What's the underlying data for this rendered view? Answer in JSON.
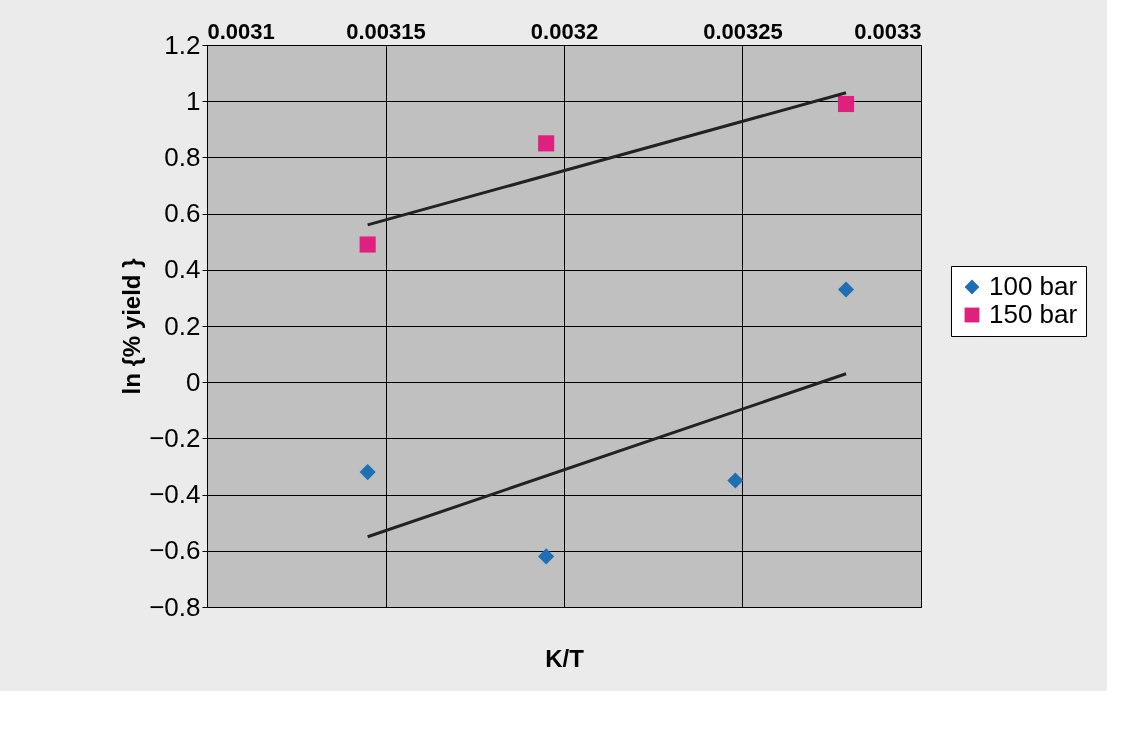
{
  "chart_data": {
    "type": "scatter",
    "xlabel": "K/T",
    "ylabel": "ln {% yield }",
    "xlim": [
      0.0031,
      0.0033
    ],
    "xticks": [
      0.0031,
      0.00315,
      0.0032,
      0.00325,
      0.0033
    ],
    "ylim": [
      -0.8,
      1.2
    ],
    "yticks": [
      -0.8,
      -0.6,
      -0.4,
      -0.2,
      0,
      0.2,
      0.4,
      0.6,
      0.8,
      1,
      1.2
    ],
    "grid": true,
    "legend": "right",
    "series": [
      {
        "name": "100 bar",
        "marker": "diamond",
        "color": "#1f6fb4",
        "x": [
          0.003145,
          0.003195,
          0.003248,
          0.003279
        ],
        "values": [
          -0.32,
          -0.62,
          -0.35,
          0.33
        ]
      },
      {
        "name": "150 bar",
        "marker": "square",
        "color": "#e0207f",
        "x": [
          0.003145,
          0.003195,
          0.003279
        ],
        "values": [
          0.49,
          0.85,
          0.99
        ]
      },
      {
        "type": "line",
        "color": "#222222",
        "x": [
          0.003145,
          0.003279
        ],
        "values": [
          -0.55,
          0.03
        ]
      },
      {
        "type": "line",
        "color": "#222222",
        "x": [
          0.003145,
          0.003279
        ],
        "values": [
          0.56,
          1.03
        ]
      }
    ]
  }
}
